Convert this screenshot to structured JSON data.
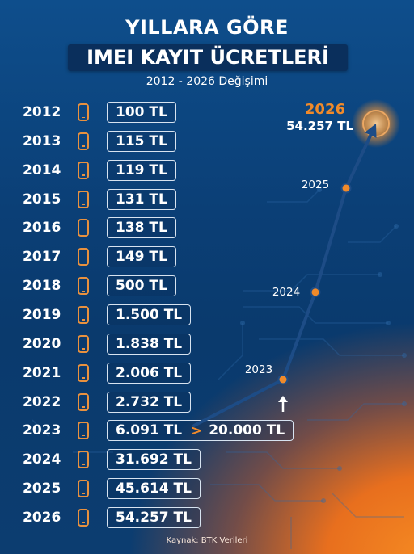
{
  "header": {
    "title_line1": "YILLARA GÖRE",
    "title_line2": "IMEI KAYIT ÜCRETLERİ",
    "subtitle": "2012 - 2026 Değişimi"
  },
  "rows": [
    {
      "year": "2012",
      "value": "100 TL"
    },
    {
      "year": "2013",
      "value": "115 TL"
    },
    {
      "year": "2014",
      "value": "119 TL"
    },
    {
      "year": "2015",
      "value": "131 TL"
    },
    {
      "year": "2016",
      "value": "138 TL"
    },
    {
      "year": "2017",
      "value": "149 TL"
    },
    {
      "year": "2018",
      "value": "500 TL"
    },
    {
      "year": "2019",
      "value": "1.500 TL"
    },
    {
      "year": "2020",
      "value": "1.838 TL"
    },
    {
      "year": "2021",
      "value": "2.006 TL"
    },
    {
      "year": "2022",
      "value": "2.732 TL"
    },
    {
      "year": "2023",
      "value": "6.091 TL",
      "value2": "20.000 TL"
    },
    {
      "year": "2024",
      "value": "31.692 TL"
    },
    {
      "year": "2025",
      "value": "45.614 TL"
    },
    {
      "year": "2026",
      "value": "54.257 TL"
    }
  ],
  "footer": {
    "source": "Kaynak: BTK Verileri"
  },
  "colors": {
    "accent": "#f08a2a",
    "line": "#1d4c86",
    "background": "#0b3f76"
  },
  "icons": {
    "row_icon": "smartphone-icon",
    "arrow": "arrow-up-icon"
  },
  "chart_data": {
    "type": "line",
    "title": "YILLARA GÖRE IMEI KAYIT ÜCRETLERİ",
    "subtitle": "2012 - 2026 Değişimi",
    "unit": "TL",
    "x": [
      "2012",
      "2013",
      "2014",
      "2015",
      "2016",
      "2017",
      "2018",
      "2019",
      "2020",
      "2021",
      "2022",
      "2023",
      "2024",
      "2025",
      "2026"
    ],
    "y": [
      100,
      115,
      119,
      131,
      138,
      149,
      500,
      1500,
      1838,
      2006,
      2732,
      6091,
      31692,
      45614,
      54257
    ],
    "line_points": [
      {
        "label": "2023",
        "value": 20000
      },
      {
        "label": "2024",
        "value": 31692
      },
      {
        "label": "2025",
        "value": 45614
      },
      {
        "label": "2026",
        "value": 54257,
        "value_label": "54.257 TL"
      }
    ],
    "annotation": "6.091 TL > 20.000 TL",
    "legend": "none",
    "grid": false
  }
}
